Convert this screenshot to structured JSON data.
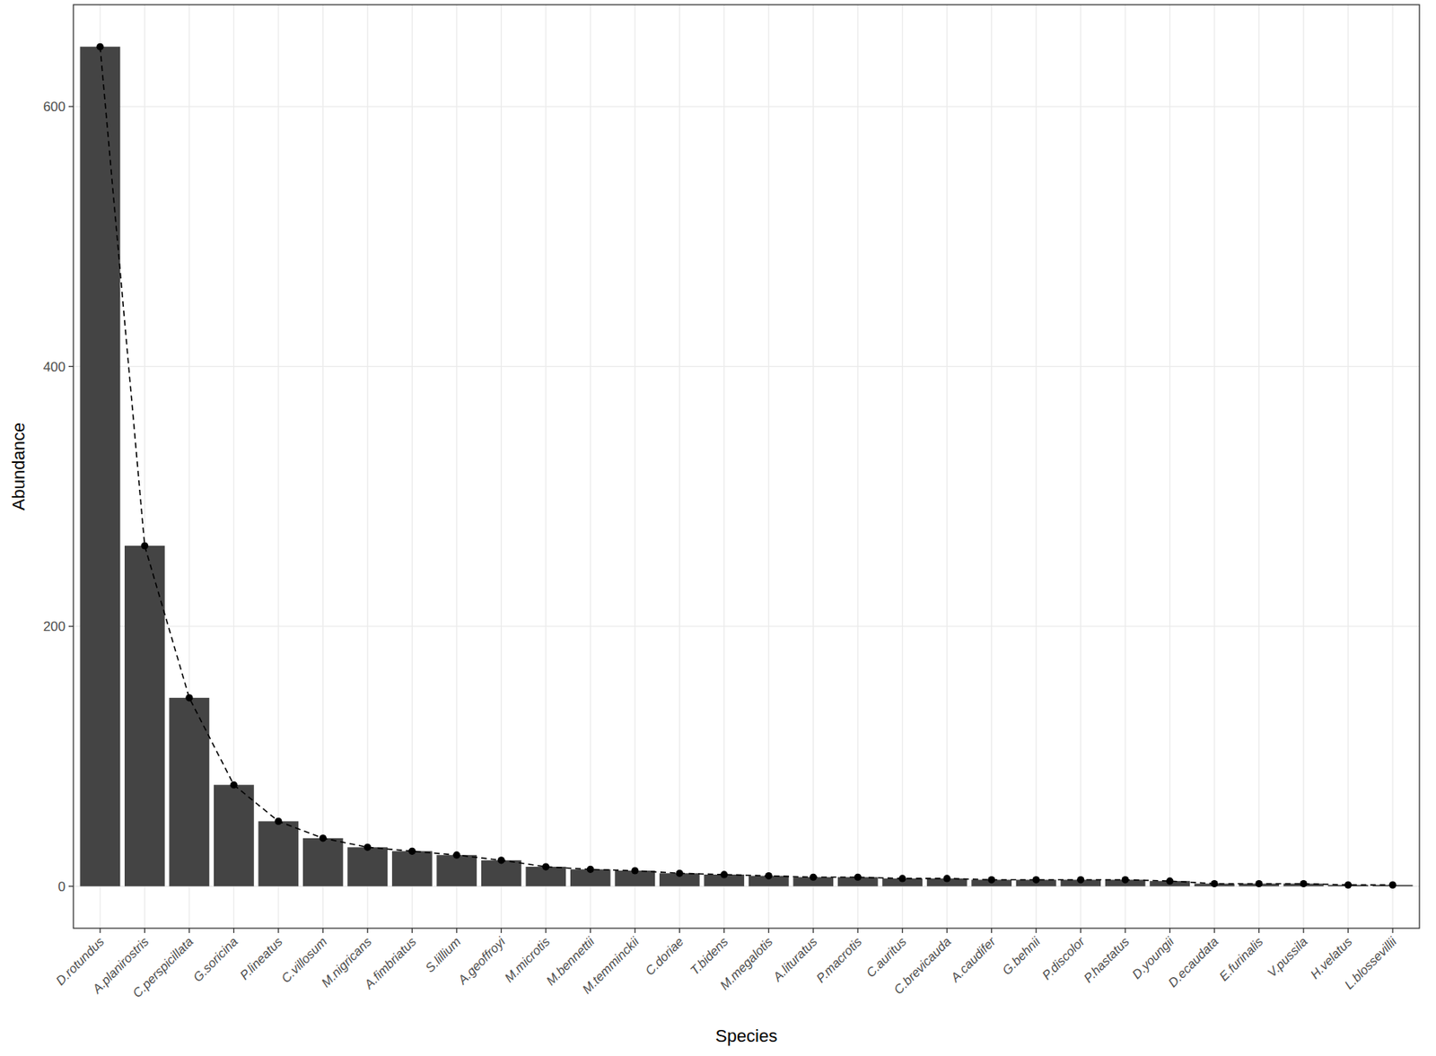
{
  "chart_data": {
    "type": "bar",
    "x_label": "Species",
    "y_label": "Abundance",
    "categories": [
      "D.rotundus",
      "A.planirostris",
      "C.perspicillata",
      "G.soricina",
      "P.lineatus",
      "C.villosum",
      "M.nigricans",
      "A.fimbriatus",
      "S.lillium",
      "A.geoffroyi",
      "M.microtis",
      "M.bennettii",
      "M.temminckii",
      "C.doriae",
      "T.bidens",
      "M.megalotis",
      "A.lituratus",
      "P.macrotis",
      "C.auritus",
      "C.brevicauda",
      "A.caudifer",
      "G.behnii",
      "P.discolor",
      "P.hastatus",
      "D.youngii",
      "D.ecaudata",
      "E.furinalis",
      "V.pussila",
      "H.velatus",
      "L.blossevillii"
    ],
    "values": [
      646,
      262,
      145,
      78,
      50,
      37,
      30,
      27,
      24,
      20,
      15,
      13,
      12,
      10,
      9,
      8,
      7,
      7,
      6,
      6,
      5,
      5,
      5,
      5,
      4,
      2,
      2,
      2,
      1,
      1
    ],
    "color": "#444444",
    "marker": "circle",
    "line_style": "dashed",
    "ylim": [
      -32.3,
      678.3
    ],
    "yticks": [
      0,
      200,
      400,
      600
    ],
    "grid": true
  }
}
